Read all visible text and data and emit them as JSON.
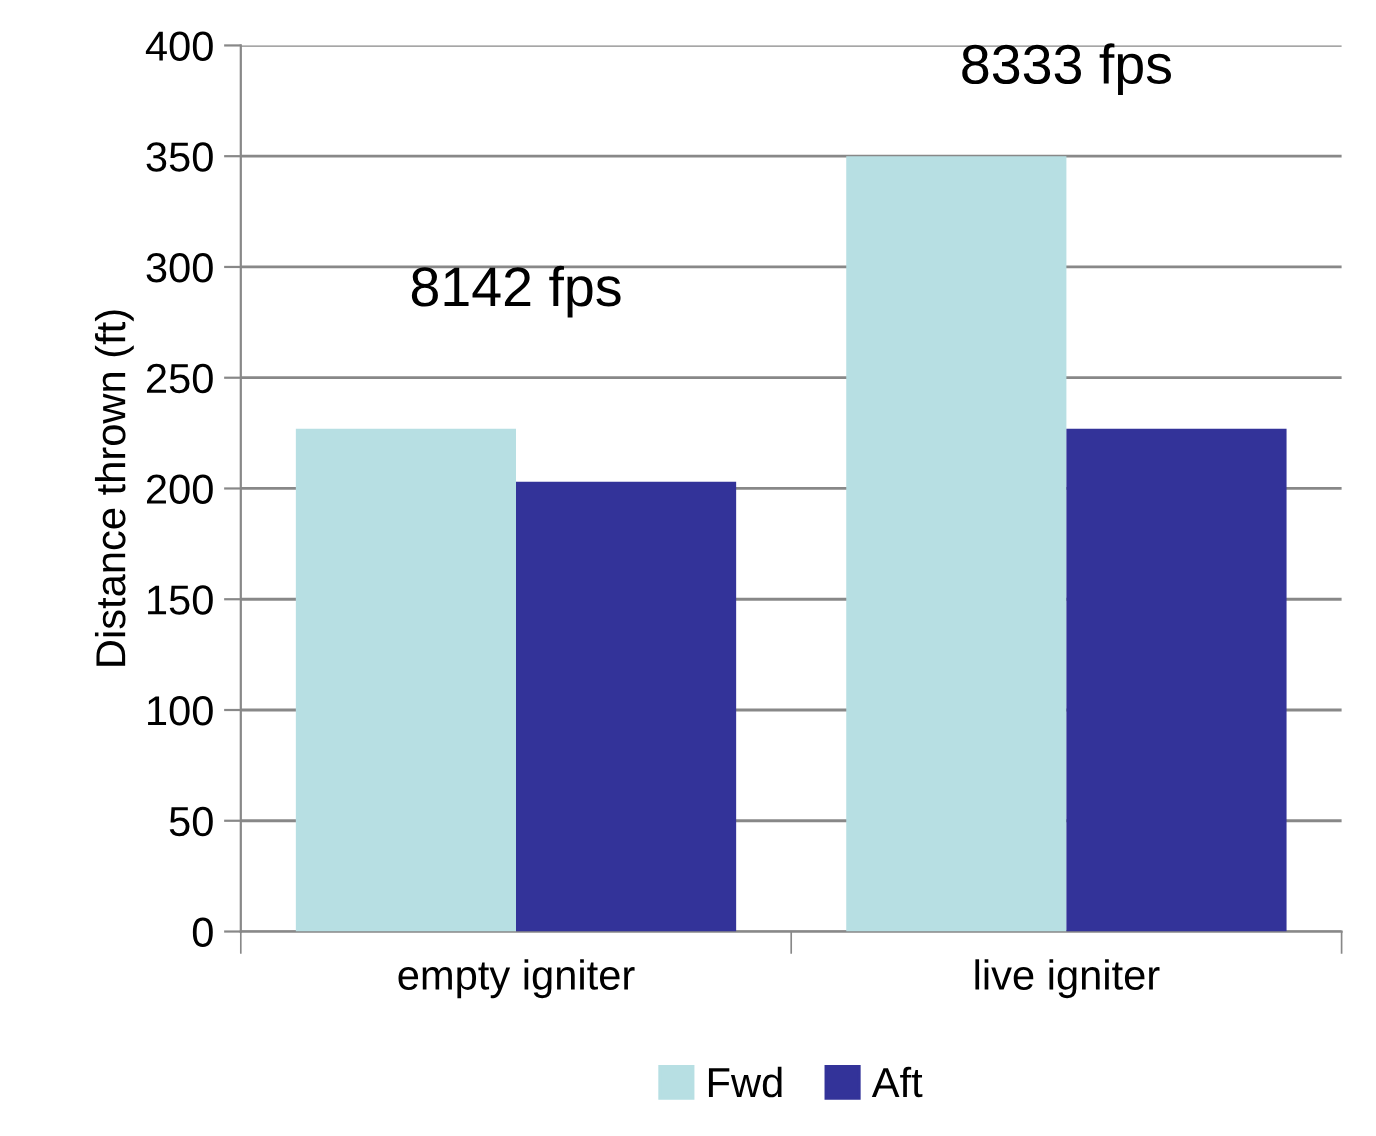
{
  "chart_data": {
    "type": "bar",
    "ylabel": "Distance thrown (ft)",
    "categories": [
      "empty igniter",
      "live igniter"
    ],
    "series": [
      {
        "name": "Fwd",
        "color": "#b7dfe3",
        "values": [
          227,
          350
        ]
      },
      {
        "name": "Aft",
        "color": "#333399",
        "values": [
          203,
          227
        ]
      }
    ],
    "ylim": [
      0,
      400
    ],
    "yticks": [
      0,
      50,
      100,
      150,
      200,
      250,
      300,
      350,
      400
    ],
    "grid": "y",
    "legend": "bottom",
    "annotations": [
      "8142 fps",
      "8333 fps"
    ]
  }
}
